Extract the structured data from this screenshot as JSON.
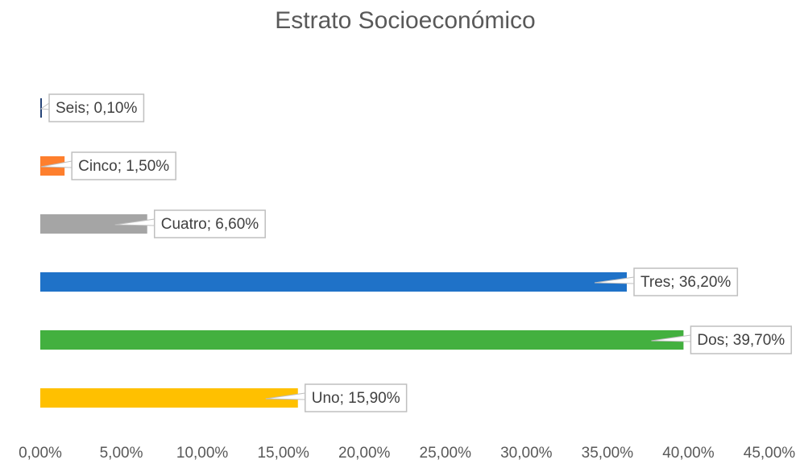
{
  "chart_data": {
    "type": "bar",
    "orientation": "horizontal",
    "title": "Estrato Socioeconómico",
    "categories": [
      "Uno",
      "Dos",
      "Tres",
      "Cuatro",
      "Cinco",
      "Seis"
    ],
    "values": [
      15.9,
      39.7,
      36.2,
      6.6,
      1.5,
      0.1
    ],
    "value_labels": [
      "Uno; 15,90%",
      "Dos; 39,70%",
      "Tres; 36,20%",
      "Cuatro; 6,60%",
      "Cinco; 1,50%",
      "Seis; 0,10%"
    ],
    "colors": [
      "#ffc000",
      "#43b03f",
      "#1f72c8",
      "#a5a5a5",
      "#fe7f2d",
      "#264478"
    ],
    "xlim": [
      0,
      45
    ],
    "xticks": [
      {
        "value": 0,
        "label": "0,00%"
      },
      {
        "value": 5,
        "label": "5,00%"
      },
      {
        "value": 10,
        "label": "10,00%"
      },
      {
        "value": 15,
        "label": "15,00%"
      },
      {
        "value": 20,
        "label": "20,00%"
      },
      {
        "value": 25,
        "label": "25,00%"
      },
      {
        "value": 30,
        "label": "30,00%"
      },
      {
        "value": 35,
        "label": "35,00%"
      },
      {
        "value": 40,
        "label": "40,00%"
      },
      {
        "value": 45,
        "label": "45,00%"
      }
    ],
    "grid": false
  }
}
